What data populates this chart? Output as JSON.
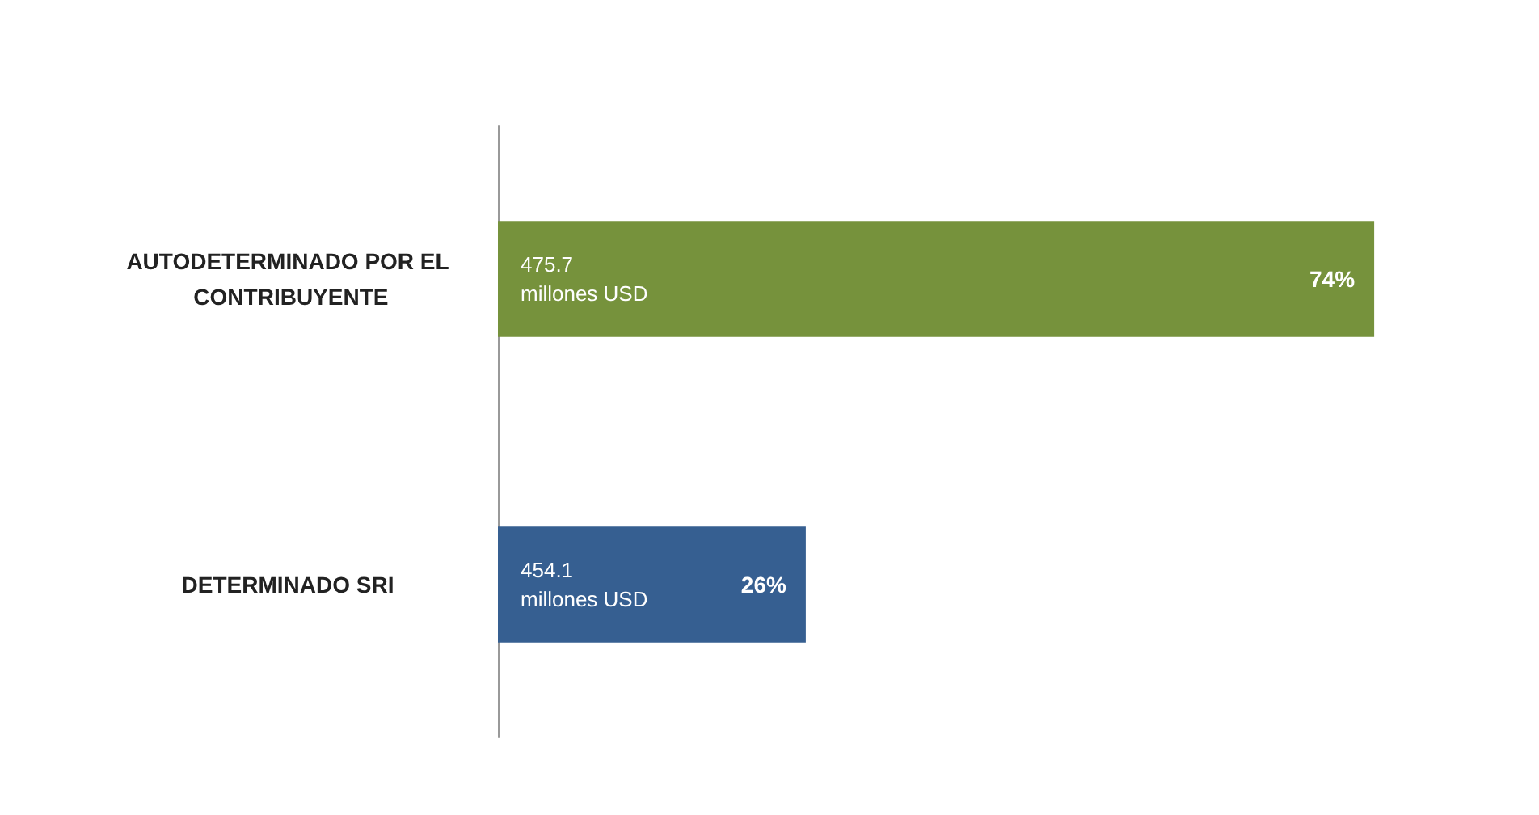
{
  "chart_data": {
    "type": "bar",
    "orientation": "horizontal",
    "categories": [
      "AUTODETERMINADO POR EL CONTRIBUYENTE",
      "DETERMINADO SRI"
    ],
    "values": [
      74,
      26
    ],
    "colors": [
      "#76923c",
      "#365f91"
    ],
    "value_labels": [
      "74%",
      "26%"
    ],
    "annotations": [
      "475.7 millones USD",
      "454.1 millones USD"
    ]
  }
}
